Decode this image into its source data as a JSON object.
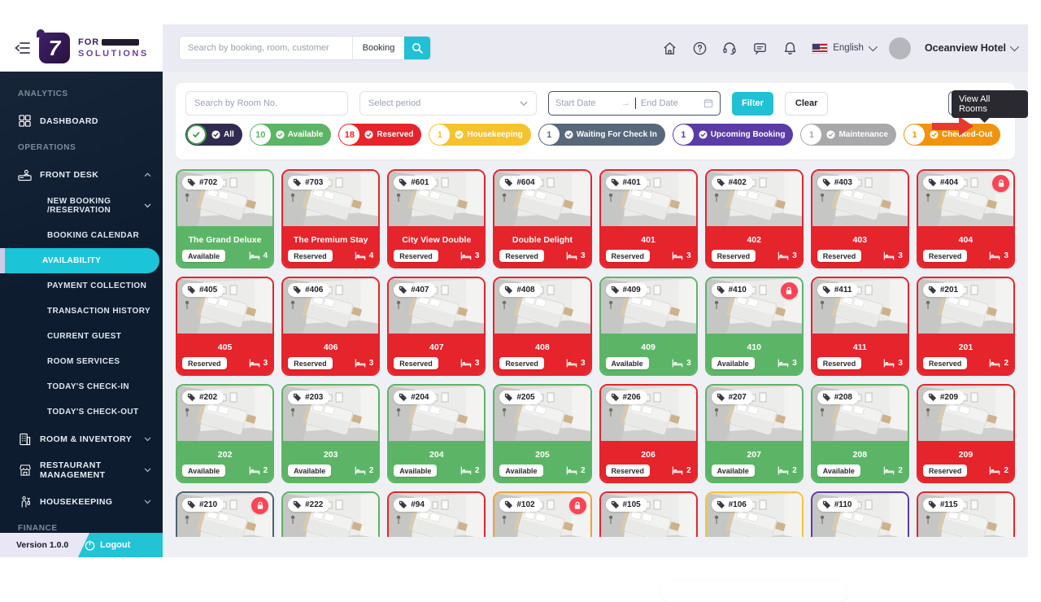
{
  "brand": {
    "mark": "7",
    "line1": "FOR",
    "line2": "SOLUTIONS"
  },
  "topbar": {
    "search_placeholder": "Search by booking, room, customer",
    "search_category": "Booking",
    "language": "English",
    "account_name": "Oceanview Hotel",
    "icons": [
      "home-icon",
      "help-icon",
      "support-headset-icon",
      "chat-icon",
      "notifications-bell-icon"
    ]
  },
  "tooltip_text": "View All Rooms",
  "filter_bar": {
    "room_search_placeholder": "Search by Room No.",
    "period_placeholder": "Select period",
    "start_date_placeholder": "Start Date",
    "range_arrow": "→",
    "end_date_placeholder": "End Date",
    "filter_label": "Filter",
    "clear_label": "Clear"
  },
  "status_pills": [
    {
      "key": "all",
      "label": "All",
      "count": null,
      "color": "#312b52"
    },
    {
      "key": "available",
      "label": "Available",
      "count": 10,
      "color": "#5cb567"
    },
    {
      "key": "reserved",
      "label": "Reserved",
      "count": 18,
      "color": "#e5242b"
    },
    {
      "key": "housekeeping",
      "label": "Housekeeping",
      "count": 1,
      "color": "#f5c230"
    },
    {
      "key": "waiting",
      "label": "Waiting For Check In",
      "count": 1,
      "color": "#56687a"
    },
    {
      "key": "upcoming",
      "label": "Upcoming Booking",
      "count": 1,
      "color": "#5b3ba5"
    },
    {
      "key": "maintenance",
      "label": "Maintenance",
      "count": 1,
      "color": "#a8a8aa"
    },
    {
      "key": "checkedout",
      "label": "Checked-Out",
      "count": 1,
      "color": "#f0940f"
    }
  ],
  "status_colors": {
    "available": "#5cb567",
    "reserved": "#e5242b",
    "housekeeping": "#f2c53b",
    "waiting": "#4f6070",
    "upcoming": "#5b3ba5",
    "maintenance": "#a8a8aa",
    "checkedout": "#f2a32c"
  },
  "rooms": [
    {
      "number": "#702",
      "name": "The Grand Deluxe",
      "status": "available",
      "status_label": "Available",
      "beds": 4,
      "locked": false,
      "partial": false
    },
    {
      "number": "#703",
      "name": "The Premium Stay",
      "status": "reserved",
      "status_label": "Reserved",
      "beds": 4,
      "locked": false,
      "partial": false
    },
    {
      "number": "#601",
      "name": "City View Double",
      "status": "reserved",
      "status_label": "Reserved",
      "beds": 3,
      "locked": false,
      "partial": false
    },
    {
      "number": "#604",
      "name": "Double Delight",
      "status": "reserved",
      "status_label": "Reserved",
      "beds": 3,
      "locked": false,
      "partial": false
    },
    {
      "number": "#401",
      "name": "401",
      "status": "reserved",
      "status_label": "Reserved",
      "beds": 3,
      "locked": false,
      "partial": false
    },
    {
      "number": "#402",
      "name": "402",
      "status": "reserved",
      "status_label": "Reserved",
      "beds": 3,
      "locked": false,
      "partial": false
    },
    {
      "number": "#403",
      "name": "403",
      "status": "reserved",
      "status_label": "Reserved",
      "beds": 3,
      "locked": false,
      "partial": false
    },
    {
      "number": "#404",
      "name": "404",
      "status": "reserved",
      "status_label": "Reserved",
      "beds": 3,
      "locked": true,
      "partial": false
    },
    {
      "number": "#405",
      "name": "405",
      "status": "reserved",
      "status_label": "Reserved",
      "beds": 3,
      "locked": false,
      "partial": false
    },
    {
      "number": "#406",
      "name": "406",
      "status": "reserved",
      "status_label": "Reserved",
      "beds": 3,
      "locked": false,
      "partial": false
    },
    {
      "number": "#407",
      "name": "407",
      "status": "reserved",
      "status_label": "Reserved",
      "beds": 3,
      "locked": false,
      "partial": false
    },
    {
      "number": "#408",
      "name": "408",
      "status": "reserved",
      "status_label": "Reserved",
      "beds": 3,
      "locked": false,
      "partial": false
    },
    {
      "number": "#409",
      "name": "409",
      "status": "available",
      "status_label": "Available",
      "beds": 3,
      "locked": false,
      "partial": false
    },
    {
      "number": "#410",
      "name": "410",
      "status": "available",
      "status_label": "Available",
      "beds": 3,
      "locked": true,
      "partial": false
    },
    {
      "number": "#411",
      "name": "411",
      "status": "reserved",
      "status_label": "Reserved",
      "beds": 3,
      "locked": false,
      "partial": false
    },
    {
      "number": "#201",
      "name": "201",
      "status": "reserved",
      "status_label": "Reserved",
      "beds": 2,
      "locked": false,
      "partial": false
    },
    {
      "number": "#202",
      "name": "202",
      "status": "available",
      "status_label": "Available",
      "beds": 2,
      "locked": false,
      "partial": false
    },
    {
      "number": "#203",
      "name": "203",
      "status": "available",
      "status_label": "Available",
      "beds": 2,
      "locked": false,
      "partial": false
    },
    {
      "number": "#204",
      "name": "204",
      "status": "available",
      "status_label": "Available",
      "beds": 2,
      "locked": false,
      "partial": false
    },
    {
      "number": "#205",
      "name": "205",
      "status": "available",
      "status_label": "Available",
      "beds": 2,
      "locked": false,
      "partial": false
    },
    {
      "number": "#206",
      "name": "206",
      "status": "reserved",
      "status_label": "Reserved",
      "beds": 2,
      "locked": false,
      "partial": false
    },
    {
      "number": "#207",
      "name": "207",
      "status": "available",
      "status_label": "Available",
      "beds": 2,
      "locked": false,
      "partial": false
    },
    {
      "number": "#208",
      "name": "208",
      "status": "available",
      "status_label": "Available",
      "beds": 2,
      "locked": false,
      "partial": false
    },
    {
      "number": "#209",
      "name": "209",
      "status": "reserved",
      "status_label": "Reserved",
      "beds": 2,
      "locked": false,
      "partial": false
    },
    {
      "number": "#210",
      "name": "",
      "status": "waiting",
      "status_label": "",
      "beds": null,
      "locked": true,
      "partial": true
    },
    {
      "number": "#222",
      "name": "",
      "status": "available",
      "status_label": "",
      "beds": null,
      "locked": false,
      "partial": true
    },
    {
      "number": "#94",
      "name": "",
      "status": "reserved",
      "status_label": "",
      "beds": null,
      "locked": false,
      "partial": true
    },
    {
      "number": "#102",
      "name": "",
      "status": "checkedout",
      "status_label": "",
      "beds": null,
      "locked": true,
      "partial": true
    },
    {
      "number": "#105",
      "name": "",
      "status": "reserved",
      "status_label": "",
      "beds": null,
      "locked": false,
      "partial": true
    },
    {
      "number": "#106",
      "name": "",
      "status": "housekeeping",
      "status_label": "",
      "beds": null,
      "locked": false,
      "partial": true
    },
    {
      "number": "#110",
      "name": "",
      "status": "upcoming",
      "status_label": "",
      "beds": null,
      "locked": false,
      "partial": true
    },
    {
      "number": "#115",
      "name": "",
      "status": "reserved",
      "status_label": "",
      "beds": null,
      "locked": false,
      "partial": true
    }
  ],
  "sidebar": {
    "sections": [
      {
        "label": "ANALYTICS",
        "items": [
          {
            "label": "DASHBOARD",
            "icon": "dashboard-icon"
          }
        ]
      },
      {
        "label": "OPERATIONS",
        "items": [
          {
            "label": "FRONT DESK",
            "icon": "front-desk-icon",
            "chevron": "up",
            "children": [
              {
                "label": "NEW BOOKING /RESERVATION",
                "chevron": "down"
              },
              {
                "label": "BOOKING CALENDAR"
              },
              {
                "label": "AVAILABILITY",
                "active": true
              },
              {
                "label": "PAYMENT COLLECTION"
              },
              {
                "label": "TRANSACTION HISTORY"
              },
              {
                "label": "CURRENT GUEST"
              },
              {
                "label": "ROOM SERVICES"
              },
              {
                "label": "TODAY'S CHECK-IN"
              },
              {
                "label": "TODAY'S CHECK-OUT"
              }
            ]
          },
          {
            "label": "ROOM & INVENTORY",
            "icon": "room-inventory-icon",
            "chevron": "down"
          },
          {
            "label": "RESTAURANT MANAGEMENT",
            "icon": "restaurant-icon",
            "chevron": "down"
          },
          {
            "label": "HOUSEKEEPING",
            "icon": "housekeeping-icon",
            "chevron": "down"
          }
        ]
      },
      {
        "label": "FINANCE",
        "items": []
      }
    ],
    "footer": {
      "version": "Version 1.0.0",
      "logout": "Logout"
    }
  }
}
